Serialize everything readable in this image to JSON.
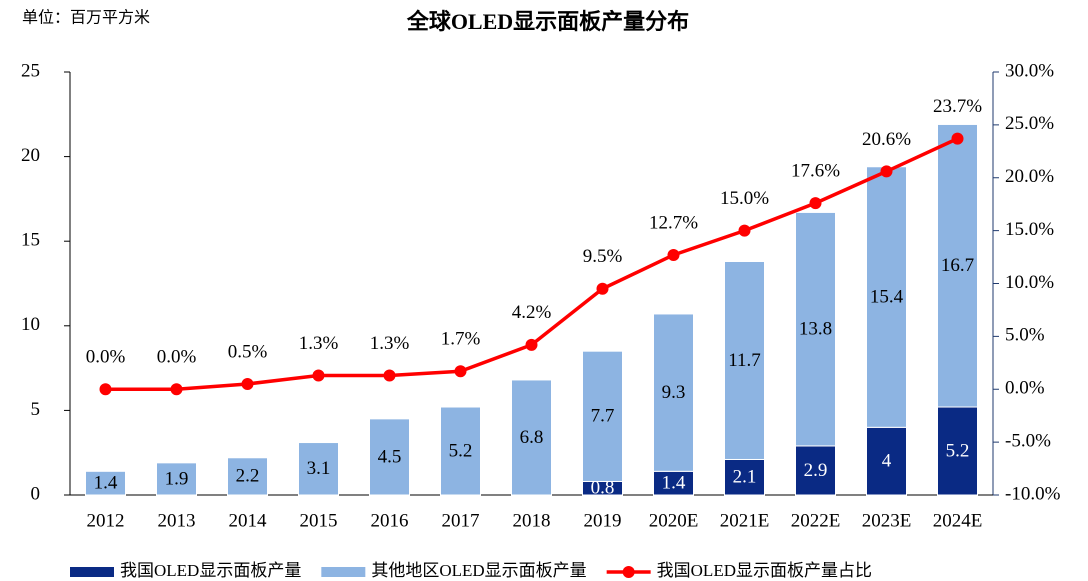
{
  "chart_data": {
    "type": "bar",
    "title": "全球OLED显示面板产量分布",
    "unit_label": "单位：百万平方米",
    "categories": [
      "2012",
      "2013",
      "2014",
      "2015",
      "2016",
      "2017",
      "2018",
      "2019",
      "2020E",
      "2021E",
      "2022E",
      "2023E",
      "2024E"
    ],
    "series": [
      {
        "name": "我国OLED显示面板产量",
        "color": "#0a2a84",
        "stack": true,
        "values": [
          null,
          null,
          null,
          null,
          null,
          null,
          null,
          0.8,
          1.4,
          2.1,
          2.9,
          4,
          5.2
        ]
      },
      {
        "name": "其他地区OLED显示面板产量",
        "color": "#8db4e2",
        "stack": true,
        "values": [
          1.4,
          1.9,
          2.2,
          3.1,
          4.5,
          5.2,
          6.8,
          7.7,
          9.3,
          11.7,
          13.8,
          15.4,
          16.7
        ]
      },
      {
        "name": "我国OLED显示面板产量占比",
        "color": "#ff0000",
        "type": "line",
        "axis": "y2",
        "values": [
          0.0,
          0.0,
          0.5,
          1.3,
          1.3,
          1.7,
          4.2,
          9.5,
          12.7,
          15.0,
          17.6,
          20.6,
          23.7
        ],
        "value_labels": [
          "0.0%",
          "0.0%",
          "0.5%",
          "1.3%",
          "1.3%",
          "1.7%",
          "4.2%",
          "9.5%",
          "12.7%",
          "15.0%",
          "17.6%",
          "20.6%",
          "23.7%"
        ]
      }
    ],
    "ylim": [
      0,
      25
    ],
    "yticks": [
      0,
      5,
      10,
      15,
      20,
      25
    ],
    "y2lim": [
      -10,
      30
    ],
    "y2ticks": [
      {
        "value": 30,
        "label": "30.0%"
      },
      {
        "value": 25,
        "label": "25.0%"
      },
      {
        "value": 20,
        "label": "20.0%"
      },
      {
        "value": 15,
        "label": "15.0%"
      },
      {
        "value": 10,
        "label": "10.0%"
      },
      {
        "value": 5,
        "label": "5.0%"
      },
      {
        "value": 0,
        "label": "0.0%"
      },
      {
        "value": -5,
        "label": "-5.0%"
      },
      {
        "value": -10,
        "label": "-10.0%"
      }
    ],
    "legend": "bottom"
  }
}
